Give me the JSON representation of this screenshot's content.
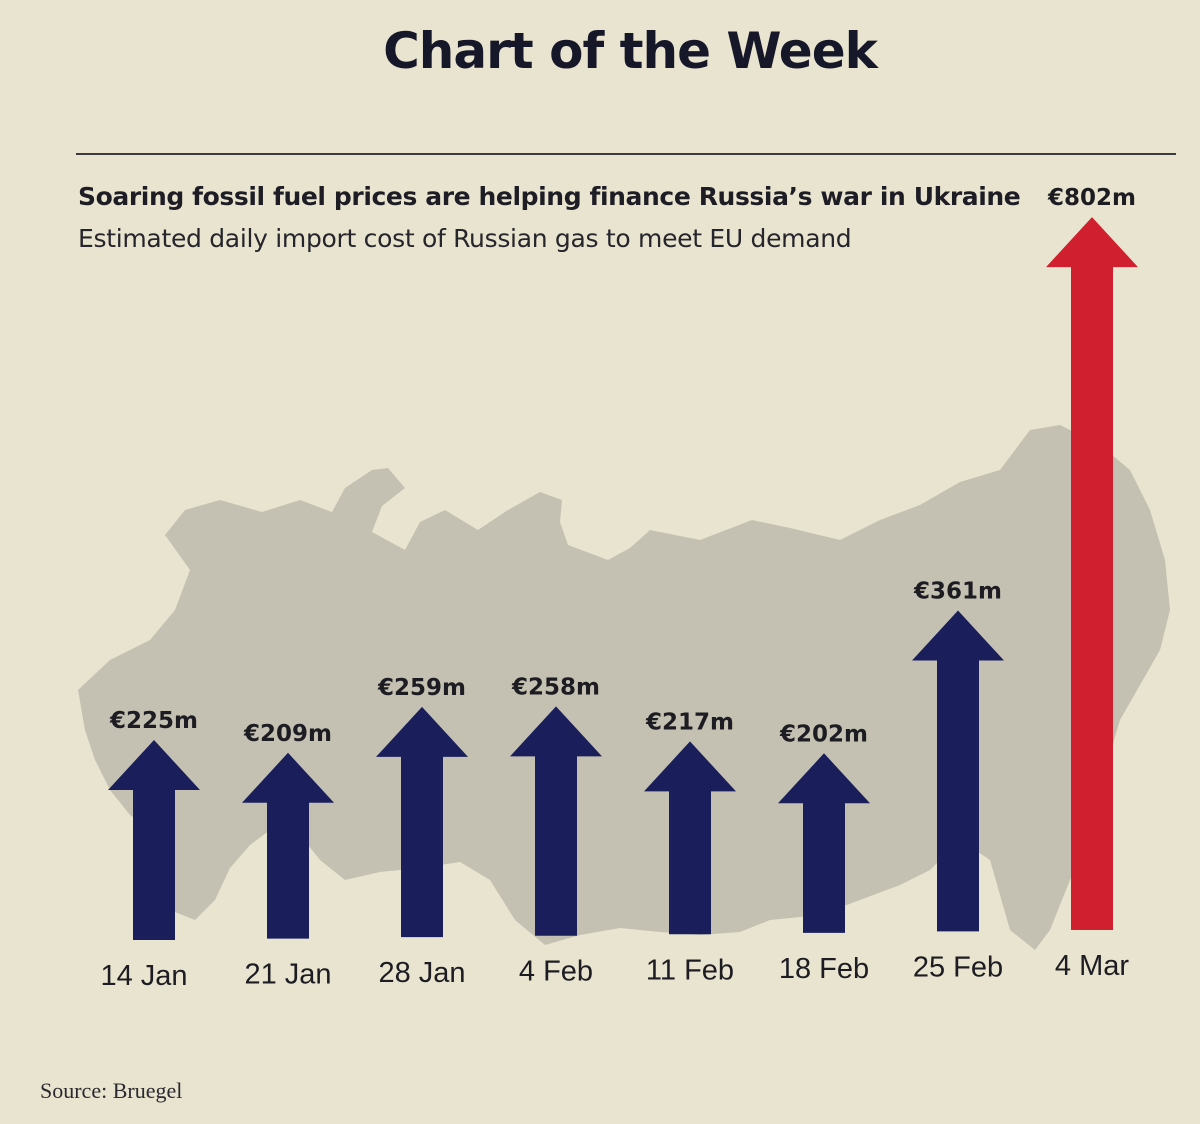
{
  "header": {
    "title": "Chart of the Week",
    "headline": "Soaring fossil fuel prices are helping finance Russia’s war in Ukraine",
    "subtitle": "Estimated daily import cost of Russian gas to meet EU demand"
  },
  "footer": {
    "source": "Source: Bruegel"
  },
  "colors": {
    "background": "#e9e4cf",
    "map": "#c4c1b2",
    "arrow_navy": "#1a1f5c",
    "arrow_red": "#d01f2e",
    "text": "#1d1c22"
  },
  "chart_data": {
    "type": "bar",
    "mark": "arrow",
    "title": "Soaring fossil fuel prices are helping finance Russia’s war in Ukraine",
    "subtitle": "Estimated daily import cost of Russian gas to meet EU demand",
    "unit": "€m",
    "categories": [
      "14 Jan",
      "21 Jan",
      "28 Jan",
      "4 Feb",
      "11 Feb",
      "18 Feb",
      "25 Feb",
      "4 Mar"
    ],
    "values": [
      225,
      209,
      259,
      258,
      217,
      202,
      361,
      802
    ],
    "value_labels": [
      "€225m",
      "€209m",
      "€259m",
      "€258m",
      "€217m",
      "€202m",
      "€361m",
      "€802m"
    ],
    "highlight_index": 7,
    "background_image": "map of Russia",
    "grid": false,
    "legend": false,
    "source": "Source: Bruegel"
  }
}
